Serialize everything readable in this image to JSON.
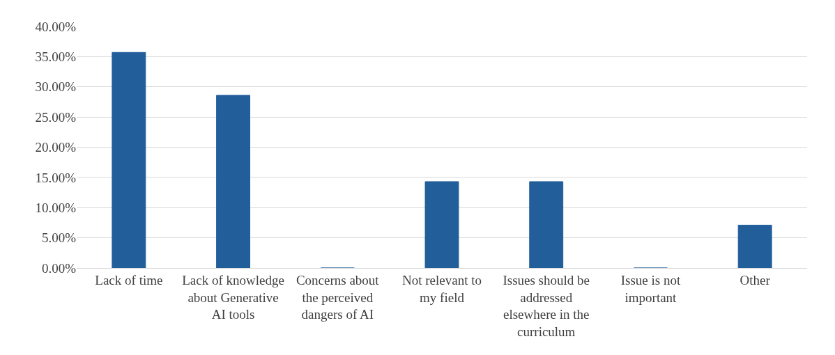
{
  "chart_data": {
    "type": "bar",
    "categories": [
      "Lack of time",
      "Lack of knowledge about Generative AI tools",
      "Concerns about the perceived dangers of AI",
      "Not relevant to my field",
      "Issues should be addressed elsewhere in the curriculum",
      "Issue is not important",
      "Other"
    ],
    "values": [
      35.7,
      28.6,
      0,
      14.3,
      14.3,
      0,
      7.1
    ],
    "color": "#215e9a",
    "ylim": [
      0,
      40
    ],
    "yticks": [
      {
        "value": 0,
        "label": "0.00%"
      },
      {
        "value": 5,
        "label": "5.00%"
      },
      {
        "value": 10,
        "label": "10.00%"
      },
      {
        "value": 15,
        "label": "15.00%"
      },
      {
        "value": 20,
        "label": "20.00%"
      },
      {
        "value": 25,
        "label": "25.00%"
      },
      {
        "value": 30,
        "label": "30.00%"
      },
      {
        "value": 35,
        "label": "35.00%"
      },
      {
        "value": 40,
        "label": "40.00%"
      }
    ],
    "grid": "y"
  }
}
